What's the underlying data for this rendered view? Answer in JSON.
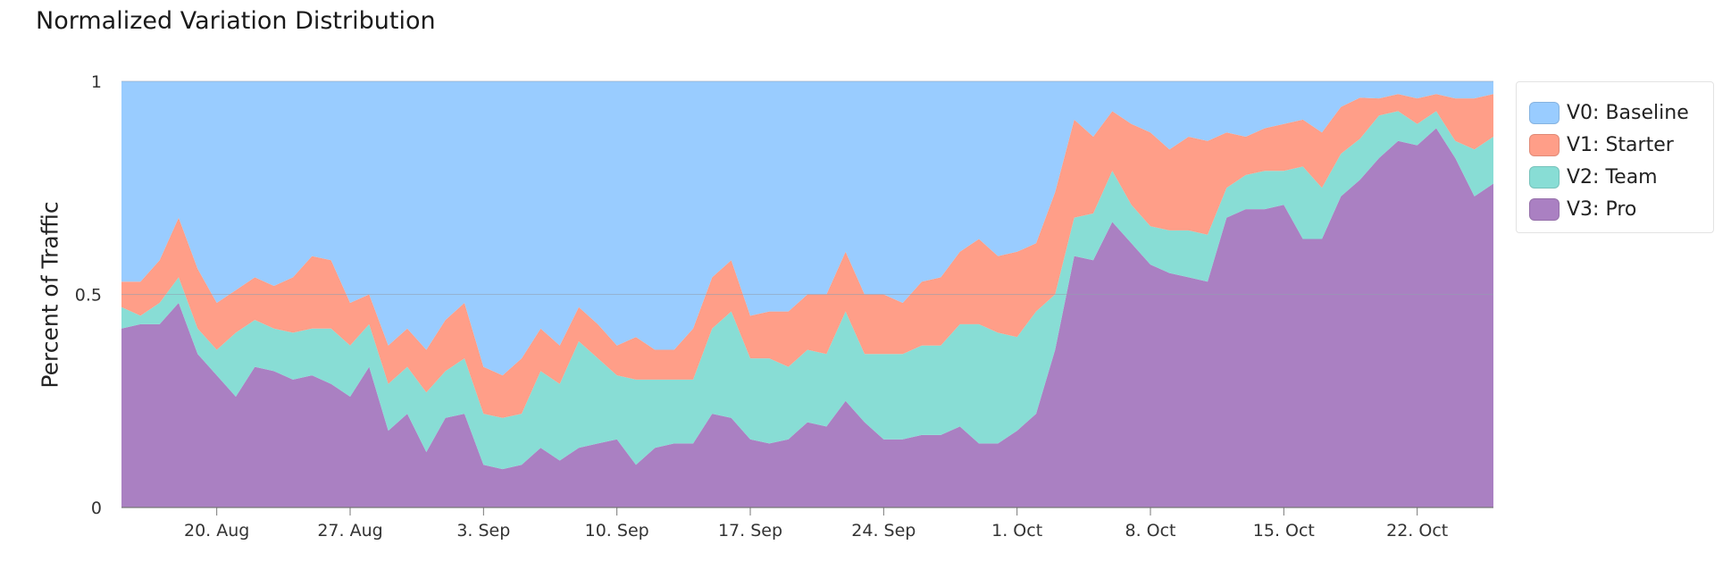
{
  "title": "Normalized Variation Distribution",
  "chart_data": {
    "type": "area",
    "stacked": true,
    "normalized": true,
    "title": "Normalized Variation Distribution",
    "xlabel": "",
    "ylabel": "Percent of Traffic",
    "ylim": [
      0,
      1
    ],
    "y_ticks": [
      "0",
      "0.5",
      "1"
    ],
    "x_ticks": [
      "20. Aug",
      "27. Aug",
      "3. Sep",
      "10. Sep",
      "17. Sep",
      "24. Sep",
      "1. Oct",
      "8. Oct",
      "15. Oct",
      "22. Oct"
    ],
    "x_start": "15. Aug",
    "grid": "y",
    "legend_position": "right",
    "x": [
      "Aug 15",
      "Aug 16",
      "Aug 17",
      "Aug 18",
      "Aug 19",
      "Aug 20",
      "Aug 21",
      "Aug 22",
      "Aug 23",
      "Aug 24",
      "Aug 25",
      "Aug 26",
      "Aug 27",
      "Aug 28",
      "Aug 29",
      "Aug 30",
      "Aug 31",
      "Sep 1",
      "Sep 2",
      "Sep 3",
      "Sep 4",
      "Sep 5",
      "Sep 6",
      "Sep 7",
      "Sep 8",
      "Sep 9",
      "Sep 10",
      "Sep 11",
      "Sep 12",
      "Sep 13",
      "Sep 14",
      "Sep 15",
      "Sep 16",
      "Sep 17",
      "Sep 18",
      "Sep 19",
      "Sep 20",
      "Sep 21",
      "Sep 22",
      "Sep 23",
      "Sep 24",
      "Sep 25",
      "Sep 26",
      "Sep 27",
      "Sep 28",
      "Sep 29",
      "Sep 30",
      "Oct 1",
      "Oct 2",
      "Oct 3",
      "Oct 4",
      "Oct 5",
      "Oct 6",
      "Oct 7",
      "Oct 8",
      "Oct 9",
      "Oct 10",
      "Oct 11",
      "Oct 12",
      "Oct 13",
      "Oct 14",
      "Oct 15",
      "Oct 16",
      "Oct 17",
      "Oct 18",
      "Oct 19",
      "Oct 20",
      "Oct 21",
      "Oct 22",
      "Oct 23",
      "Oct 24",
      "Oct 25",
      "Oct 26"
    ],
    "series": [
      {
        "name": "V0: Baseline",
        "color": "#99ccff",
        "values": [
          0.47,
          0.47,
          0.42,
          0.32,
          0.44,
          0.52,
          0.49,
          0.46,
          0.48,
          0.46,
          0.41,
          0.42,
          0.52,
          0.5,
          0.62,
          0.58,
          0.63,
          0.56,
          0.52,
          0.67,
          0.69,
          0.65,
          0.58,
          0.62,
          0.53,
          0.57,
          0.62,
          0.6,
          0.63,
          0.63,
          0.58,
          0.46,
          0.42,
          0.55,
          0.54,
          0.54,
          0.5,
          0.5,
          0.4,
          0.5,
          0.5,
          0.52,
          0.47,
          0.46,
          0.4,
          0.37,
          0.41,
          0.4,
          0.38,
          0.26,
          0.09,
          0.13,
          0.07,
          0.1,
          0.12,
          0.16,
          0.13,
          0.14,
          0.12,
          0.13,
          0.11,
          0.1,
          0.09,
          0.12,
          0.06,
          0.04,
          0.04,
          0.03,
          0.04,
          0.03,
          0.04,
          0.04,
          0.03
        ]
      },
      {
        "name": "V1: Starter",
        "color": "#ff9e88",
        "values": [
          0.06,
          0.08,
          0.1,
          0.14,
          0.14,
          0.11,
          0.1,
          0.1,
          0.1,
          0.13,
          0.17,
          0.16,
          0.1,
          0.07,
          0.09,
          0.09,
          0.1,
          0.12,
          0.13,
          0.11,
          0.1,
          0.13,
          0.1,
          0.09,
          0.08,
          0.08,
          0.07,
          0.1,
          0.07,
          0.07,
          0.12,
          0.12,
          0.12,
          0.1,
          0.11,
          0.13,
          0.13,
          0.14,
          0.14,
          0.14,
          0.14,
          0.12,
          0.15,
          0.16,
          0.17,
          0.2,
          0.18,
          0.2,
          0.16,
          0.24,
          0.23,
          0.18,
          0.14,
          0.19,
          0.22,
          0.19,
          0.22,
          0.22,
          0.13,
          0.09,
          0.1,
          0.11,
          0.11,
          0.13,
          0.11,
          0.1,
          0.04,
          0.04,
          0.06,
          0.04,
          0.1,
          0.12,
          0.1
        ]
      },
      {
        "name": "V2: Team",
        "color": "#88ddd5",
        "values": [
          0.05,
          0.02,
          0.05,
          0.06,
          0.06,
          0.06,
          0.15,
          0.11,
          0.1,
          0.11,
          0.11,
          0.13,
          0.12,
          0.1,
          0.11,
          0.11,
          0.14,
          0.11,
          0.13,
          0.12,
          0.12,
          0.12,
          0.18,
          0.18,
          0.25,
          0.2,
          0.15,
          0.2,
          0.16,
          0.15,
          0.15,
          0.2,
          0.25,
          0.19,
          0.2,
          0.17,
          0.17,
          0.17,
          0.21,
          0.16,
          0.2,
          0.2,
          0.21,
          0.21,
          0.24,
          0.28,
          0.26,
          0.22,
          0.24,
          0.13,
          0.09,
          0.11,
          0.12,
          0.09,
          0.09,
          0.1,
          0.11,
          0.11,
          0.07,
          0.08,
          0.09,
          0.08,
          0.17,
          0.12,
          0.1,
          0.1,
          0.1,
          0.07,
          0.05,
          0.04,
          0.04,
          0.11,
          0.11
        ]
      },
      {
        "name": "V3: Pro",
        "color": "#aa80c2",
        "values": [
          0.42,
          0.43,
          0.43,
          0.48,
          0.36,
          0.31,
          0.26,
          0.33,
          0.32,
          0.3,
          0.31,
          0.29,
          0.26,
          0.33,
          0.18,
          0.22,
          0.13,
          0.21,
          0.22,
          0.1,
          0.09,
          0.1,
          0.14,
          0.11,
          0.14,
          0.15,
          0.16,
          0.1,
          0.14,
          0.15,
          0.15,
          0.22,
          0.21,
          0.16,
          0.15,
          0.16,
          0.2,
          0.19,
          0.25,
          0.2,
          0.16,
          0.16,
          0.17,
          0.17,
          0.19,
          0.15,
          0.15,
          0.18,
          0.22,
          0.37,
          0.59,
          0.58,
          0.67,
          0.62,
          0.57,
          0.55,
          0.54,
          0.53,
          0.68,
          0.7,
          0.7,
          0.71,
          0.63,
          0.63,
          0.73,
          0.8,
          0.82,
          0.86,
          0.85,
          0.89,
          0.82,
          0.73,
          0.76
        ]
      }
    ]
  }
}
